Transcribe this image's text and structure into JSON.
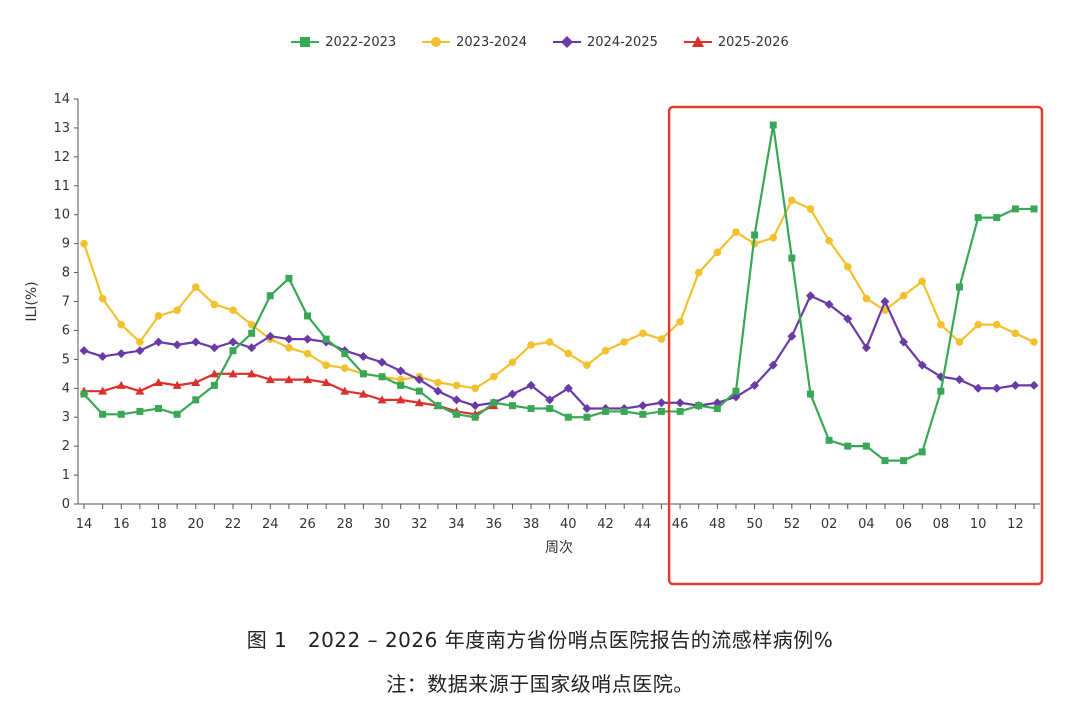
{
  "chart_data": {
    "type": "line",
    "title": "",
    "xlabel": "周次",
    "ylabel": "ILI(%)",
    "ylim": [
      0,
      14
    ],
    "y_ticks": [
      0,
      1,
      2,
      3,
      4,
      5,
      6,
      7,
      8,
      9,
      10,
      11,
      12,
      13,
      14
    ],
    "x_weeks": [
      "14",
      "15",
      "16",
      "17",
      "18",
      "19",
      "20",
      "21",
      "22",
      "23",
      "24",
      "25",
      "26",
      "27",
      "28",
      "29",
      "30",
      "31",
      "32",
      "33",
      "34",
      "35",
      "36",
      "37",
      "38",
      "39",
      "40",
      "41",
      "42",
      "43",
      "44",
      "45",
      "46",
      "47",
      "48",
      "49",
      "50",
      "51",
      "52",
      "01",
      "02",
      "03",
      "04",
      "05",
      "06",
      "07",
      "08",
      "09",
      "10",
      "11",
      "12",
      "13"
    ],
    "x_tick_labels": [
      "14",
      "16",
      "18",
      "20",
      "22",
      "24",
      "26",
      "28",
      "30",
      "32",
      "34",
      "36",
      "38",
      "40",
      "42",
      "44",
      "46",
      "48",
      "50",
      "52",
      "02",
      "04",
      "06",
      "08",
      "10",
      "12"
    ],
    "legend_position": "top-center",
    "grid": false,
    "series": [
      {
        "name": "2022-2023",
        "color": "#3aa757",
        "marker": "square",
        "values": [
          3.8,
          3.1,
          3.1,
          3.2,
          3.3,
          3.1,
          3.6,
          4.1,
          5.3,
          5.9,
          7.2,
          7.8,
          6.5,
          5.7,
          5.2,
          4.5,
          4.4,
          4.1,
          3.9,
          3.4,
          3.1,
          3.0,
          3.5,
          3.4,
          3.3,
          3.3,
          3.0,
          3.0,
          3.2,
          3.2,
          3.1,
          3.2,
          3.2,
          3.4,
          3.3,
          3.9,
          9.3,
          13.1,
          8.5,
          3.8,
          2.2,
          2.0,
          2.0,
          1.5,
          1.5,
          1.8,
          3.9,
          7.5,
          9.9,
          9.9,
          10.2,
          10.2
        ]
      },
      {
        "name": "2023-2024",
        "color": "#f2c12e",
        "marker": "circle",
        "values": [
          9.0,
          7.1,
          6.2,
          5.6,
          6.5,
          6.7,
          7.5,
          6.9,
          6.7,
          6.2,
          5.7,
          5.4,
          5.2,
          4.8,
          4.7,
          4.5,
          4.4,
          4.3,
          4.4,
          4.2,
          4.1,
          4.0,
          4.4,
          4.9,
          5.5,
          5.6,
          5.2,
          4.8,
          5.3,
          5.6,
          5.9,
          5.7,
          6.3,
          8.0,
          8.7,
          9.4,
          9.0,
          9.2,
          10.5,
          10.2,
          9.1,
          8.2,
          7.1,
          6.7,
          7.2,
          7.7,
          6.2,
          5.6,
          6.2,
          6.2,
          5.9,
          5.6
        ]
      },
      {
        "name": "2024-2025",
        "color": "#6a3ba5",
        "marker": "diamond",
        "values": [
          5.3,
          5.1,
          5.2,
          5.3,
          5.6,
          5.5,
          5.6,
          5.4,
          5.6,
          5.4,
          5.8,
          5.7,
          5.7,
          5.6,
          5.3,
          5.1,
          4.9,
          4.6,
          4.3,
          3.9,
          3.6,
          3.4,
          3.5,
          3.8,
          4.1,
          3.6,
          4.0,
          3.3,
          3.3,
          3.3,
          3.4,
          3.5,
          3.5,
          3.4,
          3.5,
          3.7,
          4.1,
          4.8,
          5.8,
          7.2,
          6.9,
          6.4,
          5.4,
          7.0,
          5.6,
          4.8,
          4.4,
          4.3,
          4.0,
          4.0,
          4.1,
          4.1
        ]
      },
      {
        "name": "2025-2026",
        "color": "#d9312b",
        "marker": "triangle",
        "values": [
          3.9,
          3.9,
          4.1,
          3.9,
          4.2,
          4.1,
          4.2,
          4.5,
          4.5,
          4.5,
          4.3,
          4.3,
          4.3,
          4.2,
          3.9,
          3.8,
          3.6,
          3.6,
          3.5,
          3.4,
          3.2,
          3.1,
          3.4
        ]
      }
    ],
    "annotation": {
      "type": "highlight-box",
      "color": "#e53a2e",
      "from_week": "46",
      "to_week": "13"
    }
  },
  "caption": {
    "title": "图 1　2022 – 2026 年度南方省份哨点医院报告的流感样病例%",
    "note": "注：数据来源于国家级哨点医院。"
  }
}
